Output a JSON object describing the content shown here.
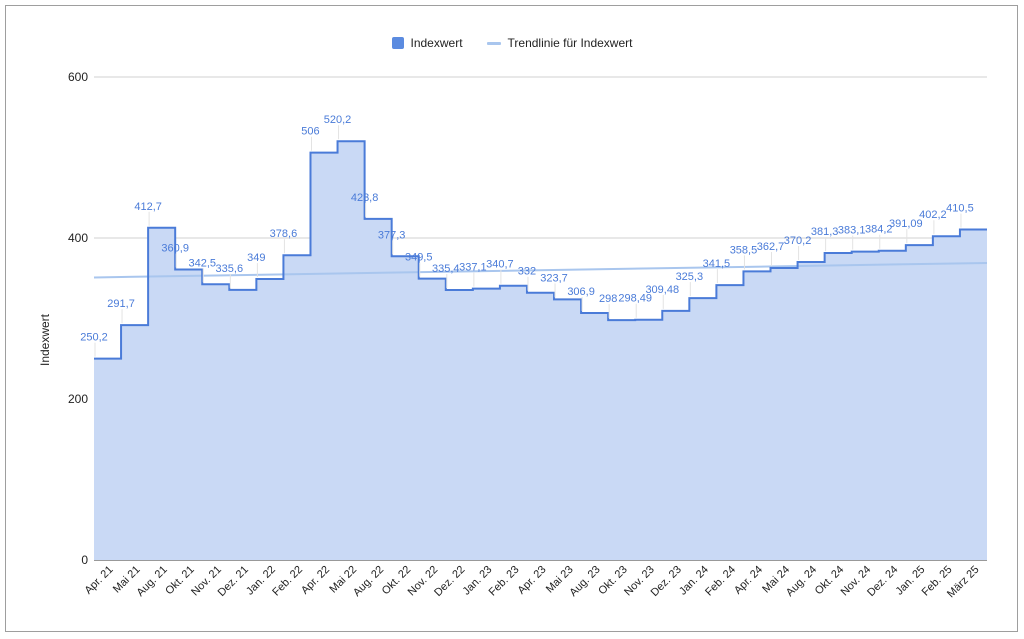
{
  "chart_data": {
    "type": "area",
    "step": true,
    "categories": [
      "Apr. 21",
      "Mai 21",
      "Aug. 21",
      "Okt. 21",
      "Nov. 21",
      "Dez. 21",
      "Jan. 22",
      "Feb. 22",
      "Apr. 22",
      "Mai 22",
      "Aug. 22",
      "Okt. 22",
      "Nov. 22",
      "Dez. 22",
      "Jan. 23",
      "Feb. 23",
      "Apr. 23",
      "Mai 23",
      "Aug. 23",
      "Okt. 23",
      "Nov. 23",
      "Dez. 23",
      "Jan. 24",
      "Feb. 24",
      "Apr. 24",
      "Mai 24",
      "Aug. 24",
      "Okt. 24",
      "Nov. 24",
      "Dez. 24",
      "Jan. 25",
      "Feb. 25",
      "März 25"
    ],
    "series": [
      {
        "name": "Indexwert",
        "color": "#4a7bd8",
        "fill": "#c9d9f5",
        "values": [
          250.2,
          291.7,
          412.7,
          360.9,
          342.5,
          335.6,
          349,
          378.6,
          506,
          520.2,
          423.8,
          377.3,
          349.5,
          335.4,
          337.1,
          340.7,
          332,
          323.7,
          306.9,
          298,
          298.49,
          309.48,
          325.3,
          341.5,
          358.5,
          362.7,
          370.2,
          381.3,
          383.1,
          384.2,
          391.09,
          402.2,
          410.5
        ],
        "labels": [
          "250,2",
          "291,7",
          "412,7",
          "360,9",
          "342,5",
          "335,6",
          "349",
          "378,6",
          "506",
          "520,2",
          "423,8",
          "377,3",
          "349,5",
          "335,4",
          "337,1",
          "340,7",
          "332",
          "323,7",
          "306,9",
          "298",
          "298,49",
          "309,48",
          "325,3",
          "341,5",
          "358,5",
          "362,7",
          "370,2",
          "381,3",
          "383,1",
          "384,2",
          "391,09",
          "402,2",
          "410,5"
        ]
      },
      {
        "name": "Trendlinie für Indexwert",
        "color": "#a9c6ee",
        "trend": {
          "start": 351,
          "end": 369
        }
      }
    ],
    "ylabel": "Indexwert",
    "xlabel": "",
    "ylim": [
      0,
      600
    ],
    "yticks": [
      0,
      200,
      400,
      600
    ],
    "grid": true,
    "legend_position": "top"
  }
}
